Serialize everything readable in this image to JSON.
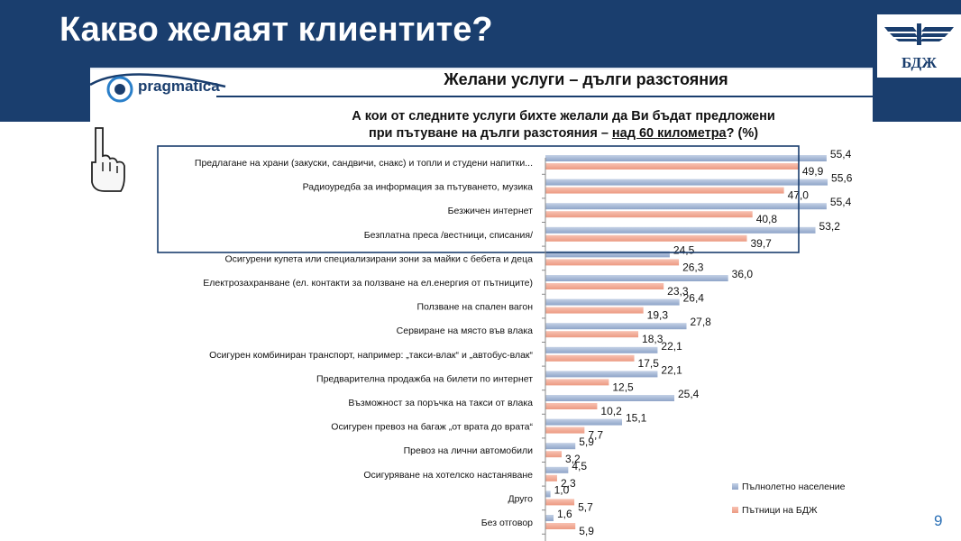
{
  "slide": {
    "title": "Какво желаят клиентите?",
    "logo_text": "БДЖ",
    "brand": "pragmatica",
    "page_number": "9",
    "colors": {
      "header": "#1a3e6e",
      "series1": "#9fb3d1",
      "series2": "#f2a994",
      "frame": "#1a3e6e"
    }
  },
  "chart_title": "Желани услуги – дълги разстояния",
  "question": {
    "line1": "А кои от следните услуги бихте желали да Ви бъдат предложени",
    "line2_pre": "при пътуване на дълги разстояния – ",
    "line2_underlined": "над 60 километра",
    "line2_post": "? (%)"
  },
  "chart_data": {
    "type": "bar",
    "orientation": "horizontal",
    "categories": [
      "Предлагане на храни (закуски, сандвичи, снакс) и топли и студени напитки...",
      "Радиоуредба за информация за пътуването, музика",
      "Безжичен интернет",
      "Безплатна преса /вестници, списания/",
      "Осигурени купета или специализирани зони за майки с бебета и деца",
      "Електрозахранване (ел. контакти за ползване на ел.енергия от пътниците)",
      "Ползване на спален вагон",
      "Сервиране на място във влака",
      "Осигурен комбиниран транспорт, например: „такси-влак“ и „автобус-влак“",
      "Предварителна продажба на билети по интернет",
      "Възможност за поръчка на такси от влака",
      "Осигурен превоз на багаж „от врата до врата“",
      "Превоз на лични автомобили",
      "Осигуряване на хотелско настаняване",
      "Друго",
      "Без отговор"
    ],
    "series": [
      {
        "name": "Пълнолетно население",
        "values": [
          55.4,
          55.6,
          55.4,
          53.2,
          24.5,
          36.0,
          26.4,
          27.8,
          22.1,
          22.1,
          25.4,
          15.1,
          5.9,
          4.5,
          1.0,
          1.6
        ]
      },
      {
        "name": "Пътници на БДЖ",
        "values": [
          49.9,
          47.0,
          40.8,
          39.7,
          26.3,
          23.3,
          19.3,
          18.3,
          17.5,
          12.5,
          10.2,
          7.7,
          3.2,
          2.3,
          5.7,
          5.9
        ]
      }
    ],
    "value_labels": [
      [
        "55,4",
        "55,6",
        "55,4",
        "53,2",
        "24,5",
        "36,0",
        "26,4",
        "27,8",
        "22,1",
        "22,1",
        "25,4",
        "15,1",
        "5,9",
        "4,5",
        "1,0",
        "1,6"
      ],
      [
        "49,9",
        "47,0",
        "40,8",
        "39,7",
        "26,3",
        "23,3",
        "19,3",
        "18,3",
        "17,5",
        "12,5",
        "10,2",
        "7,7",
        "3,2",
        "2,3",
        "5,7",
        "5,9"
      ]
    ],
    "legend_position": "bottom-right",
    "highlighted_rows": [
      0,
      1,
      2,
      3
    ],
    "grid": false
  }
}
